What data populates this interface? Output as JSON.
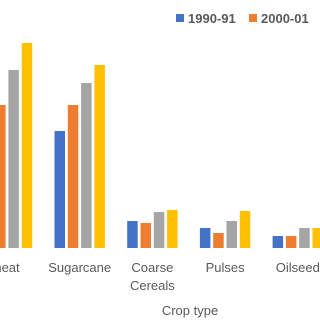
{
  "chart_data": {
    "type": "bar",
    "x_label": "Crop type",
    "categories": [
      "heat",
      "Sugarcane",
      "Coarse Cereals",
      "Pulses",
      "Oilseed"
    ],
    "series": [
      {
        "name": "1990-91",
        "color": "#4472c4",
        "values": [
          null,
          117,
          27,
          20,
          12
        ]
      },
      {
        "name": "2000-01",
        "color": "#ed7d31",
        "values": [
          143,
          143,
          25,
          15,
          12
        ]
      },
      {
        "color": "#a5a5a5",
        "values": [
          178,
          165,
          36,
          27,
          20
        ]
      },
      {
        "color": "#ffc000",
        "values": [
          205,
          183,
          38,
          37,
          20
        ]
      }
    ]
  }
}
